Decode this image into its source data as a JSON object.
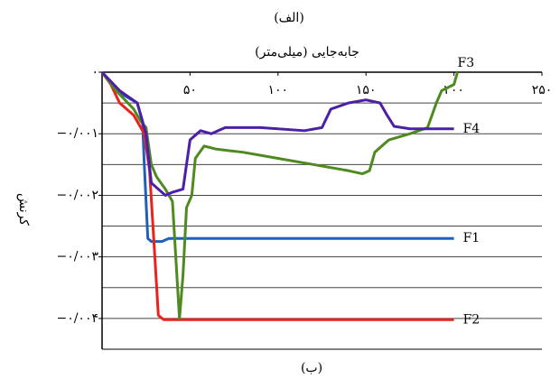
{
  "chart_data": {
    "type": "line",
    "title": "(الف)",
    "caption": "(ب)",
    "x_label": "جابه‌جایی (میلی‌متر)",
    "y_label": "کرنش",
    "xlim": [
      0,
      250
    ],
    "xticks": [
      {
        "value": 50,
        "label": "۵۰"
      },
      {
        "value": 100,
        "label": "۱۰۰"
      },
      {
        "value": 150,
        "label": "۱۵۰"
      },
      {
        "value": 200,
        "label": "۲۰۰"
      },
      {
        "value": 250,
        "label": "۲۵۰"
      }
    ],
    "ylim": [
      -0.0045,
      0
    ],
    "yticks": [
      {
        "value": 0,
        "label": "۰"
      },
      {
        "value": -0.001,
        "label": "−۰/۰۰۱"
      },
      {
        "value": -0.002,
        "label": "−۰/۰۰۲"
      },
      {
        "value": -0.003,
        "label": "−۰/۰۰۳"
      },
      {
        "value": -0.004,
        "label": "−۰/۰۰۴"
      }
    ],
    "ygrid": [
      -0.0005,
      -0.001,
      -0.0015,
      -0.002,
      -0.0025,
      -0.003,
      -0.0035,
      -0.004
    ],
    "grid": true,
    "series": [
      {
        "name": "F1",
        "color": "#1f5fbf",
        "x": [
          0,
          8,
          20,
          23,
          24,
          26,
          28,
          34,
          38,
          200
        ],
        "values": [
          0,
          -0.0003,
          -0.0005,
          -0.0008,
          -0.0015,
          -0.0027,
          -0.00275,
          -0.00275,
          -0.0027,
          -0.0027
        ]
      },
      {
        "name": "F2",
        "color": "#e8231e",
        "x": [
          0,
          5,
          10,
          18,
          24,
          27,
          30,
          32,
          35,
          200
        ],
        "values": [
          0,
          -0.0002,
          -0.0005,
          -0.0007,
          -0.001,
          -0.0016,
          -0.003,
          -0.00395,
          -0.00402,
          -0.00402
        ]
      },
      {
        "name": "F3",
        "color": "#4e8a1f",
        "x": [
          0,
          8,
          18,
          22,
          25,
          28,
          31,
          36,
          40,
          44,
          46,
          48,
          51,
          53,
          58,
          65,
          80,
          100,
          120,
          140,
          148,
          152,
          155,
          163,
          175,
          185,
          190,
          193,
          200,
          202
        ],
        "values": [
          0,
          -0.0003,
          -0.0006,
          -0.0008,
          -0.0009,
          -0.0015,
          -0.0017,
          -0.0019,
          -0.0021,
          -0.004,
          -0.0033,
          -0.0022,
          -0.002,
          -0.0014,
          -0.0012,
          -0.00125,
          -0.0013,
          -0.0014,
          -0.0015,
          -0.0016,
          -0.00165,
          -0.0016,
          -0.0013,
          -0.0011,
          -0.001,
          -0.0009,
          -0.0005,
          -0.0003,
          -0.0002,
          0
        ]
      },
      {
        "name": "F4",
        "color": "#4b1faa",
        "x": [
          0,
          10,
          20,
          25,
          28,
          32,
          36,
          40,
          46,
          50,
          56,
          62,
          70,
          90,
          115,
          125,
          130,
          140,
          150,
          158,
          162,
          166,
          175,
          200
        ],
        "values": [
          0,
          -0.0003,
          -0.0005,
          -0.001,
          -0.0018,
          -0.0019,
          -0.002,
          -0.00195,
          -0.0019,
          -0.0011,
          -0.00095,
          -0.001,
          -0.0009,
          -0.0009,
          -0.00095,
          -0.0009,
          -0.0006,
          -0.0005,
          -0.00045,
          -0.0005,
          -0.0007,
          -0.00088,
          -0.00092,
          -0.00092
        ]
      }
    ]
  }
}
